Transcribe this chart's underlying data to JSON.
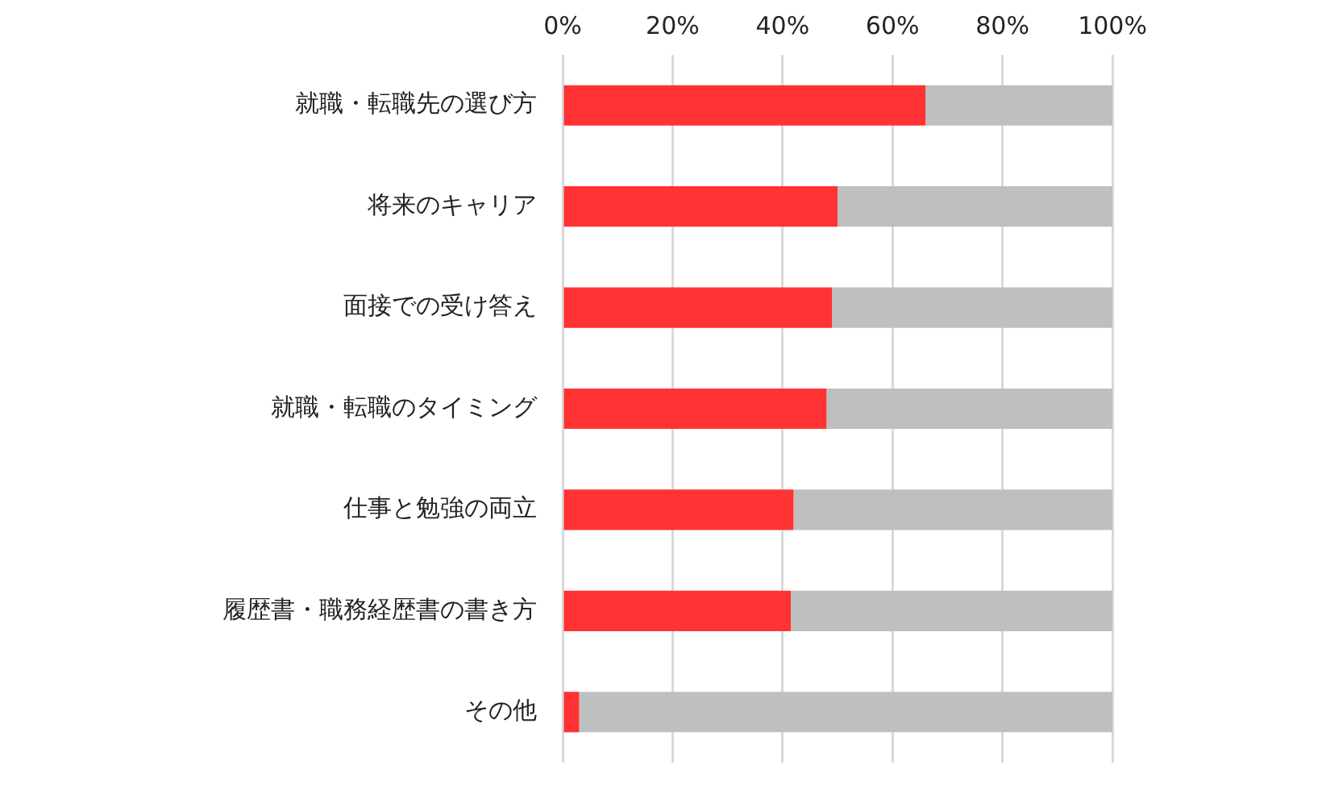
{
  "chart_data": {
    "type": "bar",
    "orientation": "horizontal",
    "stacked": true,
    "categories": [
      "就職・転職先の選び方",
      "将来のキャリア",
      "面接での受け答え",
      "就職・転職のタイミング",
      "仕事と勉強の両立",
      "履歴書・職務経歴書の書き方",
      "その他"
    ],
    "series": [
      {
        "color": "#ff3333",
        "values": [
          66,
          50,
          49,
          48,
          42,
          41.5,
          3
        ]
      },
      {
        "color": "#bfbfbf",
        "values": [
          34,
          50,
          51,
          52,
          58,
          58.5,
          97
        ]
      }
    ],
    "xlim": [
      0,
      100
    ],
    "xticks": [
      {
        "value": 0,
        "label": "0%"
      },
      {
        "value": 20,
        "label": "20%"
      },
      {
        "value": 40,
        "label": "40%"
      },
      {
        "value": 60,
        "label": "60%"
      },
      {
        "value": 80,
        "label": "80%"
      },
      {
        "value": 100,
        "label": "100%"
      }
    ],
    "grid": "x",
    "legend": false
  }
}
